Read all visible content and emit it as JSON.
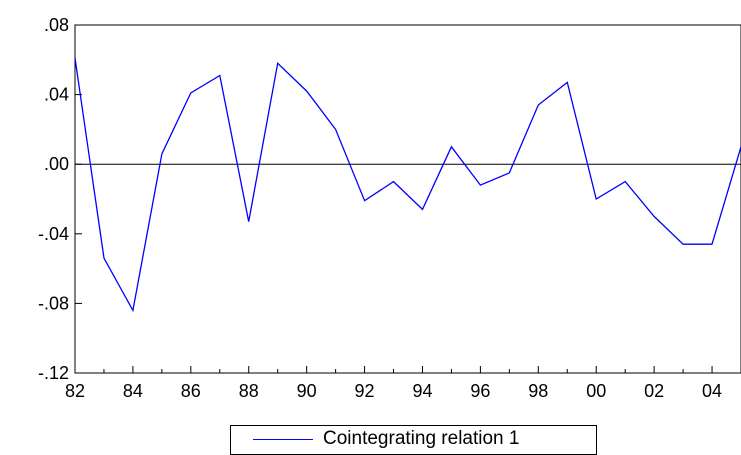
{
  "chart_data": {
    "type": "line",
    "title": "",
    "xlabel": "",
    "ylabel": "",
    "x": [
      1982,
      1983,
      1984,
      1985,
      1986,
      1987,
      1988,
      1989,
      1990,
      1991,
      1992,
      1993,
      1994,
      1995,
      1996,
      1997,
      1998,
      1999,
      2000,
      2001,
      2002,
      2003,
      2004,
      2005
    ],
    "series": [
      {
        "name": "Cointegrating relation 1",
        "values": [
          0.061,
          -0.054,
          -0.084,
          0.006,
          0.041,
          0.051,
          -0.033,
          0.058,
          0.042,
          0.02,
          -0.021,
          -0.01,
          -0.026,
          0.01,
          -0.012,
          -0.005,
          0.034,
          0.047,
          -0.02,
          -0.01,
          -0.03,
          -0.046,
          -0.046,
          0.01
        ]
      }
    ],
    "ylim": [
      -0.12,
      0.08
    ],
    "xlim": [
      1982,
      2005
    ],
    "y_ticks": [
      0.08,
      0.04,
      0.0,
      -0.04,
      -0.08,
      -0.12
    ],
    "y_tick_labels": [
      ".08",
      ".04",
      ".00",
      "-.04",
      "-.08",
      "-.12"
    ],
    "x_ticks": [
      1982,
      1984,
      1986,
      1988,
      1990,
      1992,
      1994,
      1996,
      1998,
      2000,
      2002,
      2004
    ],
    "x_tick_labels": [
      "82",
      "84",
      "86",
      "88",
      "90",
      "92",
      "94",
      "96",
      "98",
      "00",
      "02",
      "04"
    ],
    "zero_line": true,
    "grid": false,
    "line_color": "#0000ff",
    "legend_position": "bottom-center"
  }
}
